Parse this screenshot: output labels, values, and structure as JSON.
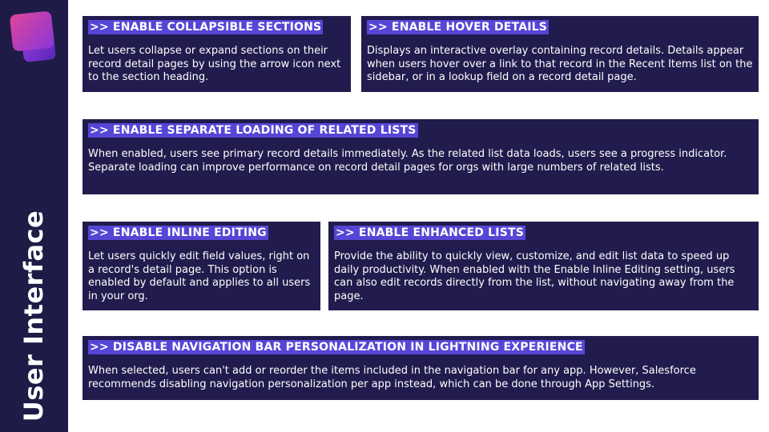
{
  "slide": {
    "vertical_title": "User Interface",
    "colors": {
      "sidebar": "#1e1c46",
      "card": "#211c4d",
      "title_highlight": "#5546d6",
      "logo_pink": "#e0459a",
      "logo_purple": "#7b2fd0"
    },
    "logo_icon": "stacked-squares-logo-icon"
  },
  "cards": [
    {
      "title": ">> ENABLE COLLAPSIBLE SECTIONS",
      "body": "Let users collapse or expand sections on their record detail pages by using the arrow icon next to the section heading."
    },
    {
      "title": ">> ENABLE HOVER DETAILS",
      "body": "Displays an interactive overlay containing record details. Details appear when users hover over a link to that record in the Recent Items list on the sidebar, or in a lookup field on a record detail page."
    },
    {
      "title": ">> ENABLE SEPARATE LOADING OF RELATED LISTS",
      "body": "When enabled, users see primary record details immediately. As the related list data loads, users see a progress indicator. Separate loading can improve performance on record detail pages for orgs with large numbers of related lists."
    },
    {
      "title": ">> ENABLE INLINE EDITING",
      "body": "Let users quickly edit field values, right on a record's detail page. This option is enabled by default and applies to all users in your org."
    },
    {
      "title": ">> ENABLE ENHANCED LISTS",
      "body": "Provide the ability to quickly view, customize, and edit list data to speed up daily productivity. When enabled with the Enable Inline Editing setting, users can also edit records directly from the list, without navigating away from the page."
    },
    {
      "title": ">> DISABLE NAVIGATION BAR PERSONALIZATION IN LIGHTNING EXPERIENCE",
      "body": "When selected, users can't add or reorder the items included in the navigation bar for any app. However, Salesforce recommends disabling navigation personalization per app instead, which can be done through App Settings."
    }
  ]
}
